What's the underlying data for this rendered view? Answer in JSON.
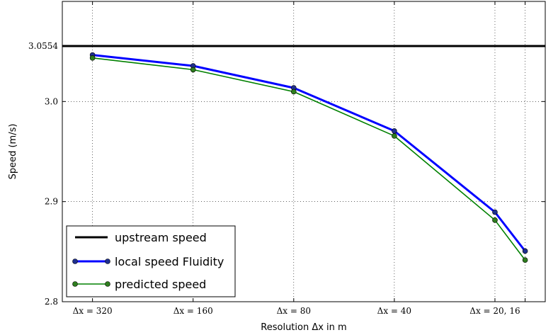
{
  "chart_data": {
    "type": "line",
    "xlabel": "Resolution Δx in m",
    "ylabel": "Speed (m/s)",
    "categories": [
      "Δx = 320",
      "Δx = 160",
      "Δx = 80",
      "Δx = 40",
      "Δx = 20, 16"
    ],
    "x": [
      0,
      1,
      2,
      3,
      4,
      4.3
    ],
    "xlim": [
      -0.3,
      4.5
    ],
    "ylim": [
      2.8,
      3.1
    ],
    "yticks": [
      2.8,
      2.9,
      3.0,
      3.0554
    ],
    "ytick_labels": [
      "2.8",
      "2.9",
      "3.0",
      "3.0554"
    ],
    "grid": true,
    "legend_position": "lower-left",
    "upstream": {
      "name": "upstream speed",
      "value": 3.0554,
      "color": "#000000"
    },
    "series": [
      {
        "name": "local speed Fluidity",
        "color": "#0000ff",
        "marker_color": "#1f2f8f",
        "values": [
          3.0465,
          3.0356,
          3.0136,
          2.9706,
          2.8895,
          2.8506
        ]
      },
      {
        "name": "predicted speed",
        "color": "#008000",
        "marker_color": "#2e7d1e",
        "values": [
          3.0435,
          3.0318,
          3.0098,
          2.9656,
          2.8815,
          2.8416
        ]
      }
    ]
  }
}
